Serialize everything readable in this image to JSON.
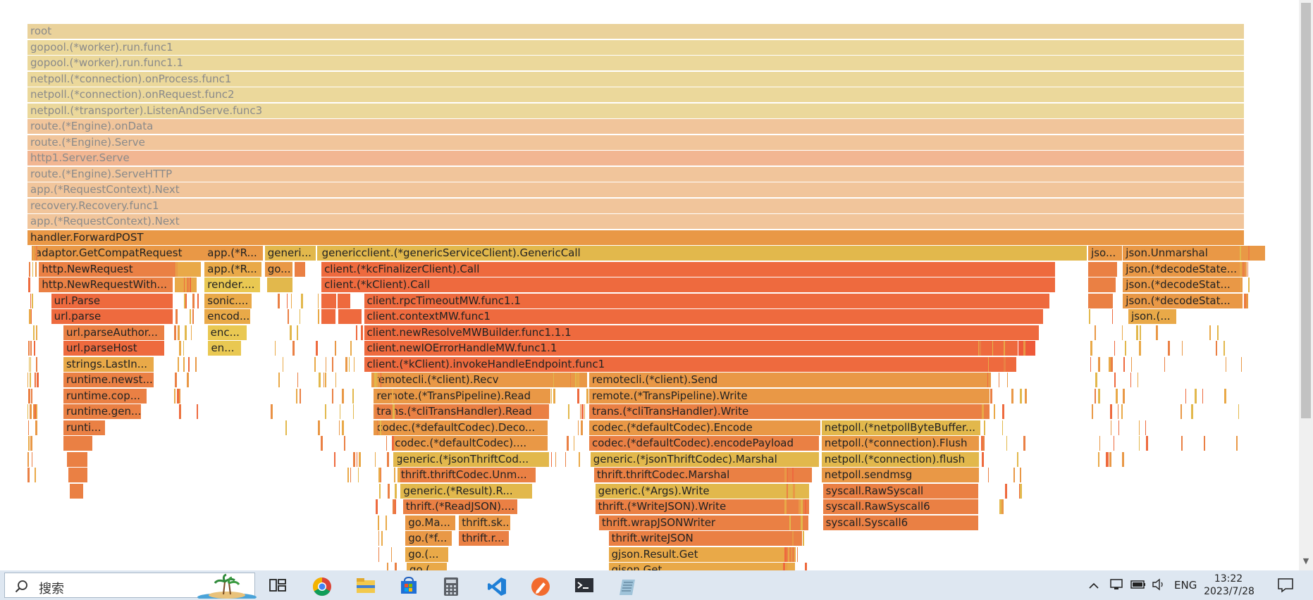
{
  "flamegraph": {
    "frames": [
      {
        "label": "root",
        "depth": 0,
        "start": 0,
        "width": 1,
        "color": "#ead29b",
        "faded": true
      },
      {
        "label": "gopool.(*worker).run.func1",
        "depth": 1,
        "start": 0,
        "width": 1,
        "color": "#ebd89b",
        "faded": true
      },
      {
        "label": "gopool.(*worker).run.func1.1",
        "depth": 2,
        "start": 0,
        "width": 1,
        "color": "#ebd89b",
        "faded": true
      },
      {
        "label": "netpoll.(*connection).onProcess.func1",
        "depth": 3,
        "start": 0,
        "width": 1,
        "color": "#ebd89b",
        "faded": true
      },
      {
        "label": "netpoll.(*connection).onRequest.func2",
        "depth": 4,
        "start": 0,
        "width": 1,
        "color": "#ebd89b",
        "faded": true
      },
      {
        "label": "netpoll.(*transporter).ListenAndServe.func3",
        "depth": 5,
        "start": 0,
        "width": 1,
        "color": "#ebd89b",
        "faded": true
      },
      {
        "label": "route.(*Engine).onData",
        "depth": 6,
        "start": 0,
        "width": 1,
        "color": "#f1c59b",
        "faded": true
      },
      {
        "label": "route.(*Engine).Serve",
        "depth": 7,
        "start": 0,
        "width": 1,
        "color": "#f1c59b",
        "faded": true
      },
      {
        "label": "http1.Server.Serve",
        "depth": 8,
        "start": 0,
        "width": 1,
        "color": "#f2b692",
        "faded": true
      },
      {
        "label": "route.(*Engine).ServeHTTP",
        "depth": 9,
        "start": 0,
        "width": 1,
        "color": "#f1c59b",
        "faded": true
      },
      {
        "label": "app.(*RequestContext).Next",
        "depth": 10,
        "start": 0,
        "width": 1,
        "color": "#f1c59b",
        "faded": true
      },
      {
        "label": "recovery.Recovery.func1",
        "depth": 11,
        "start": 0,
        "width": 1,
        "color": "#f1c59b",
        "faded": true
      },
      {
        "label": "app.(*RequestContext).Next",
        "depth": 12,
        "start": 0,
        "width": 1,
        "color": "#f1c59b",
        "faded": true
      },
      {
        "label": "handler.ForwardPOST",
        "depth": 13,
        "start": 0,
        "width": 1,
        "color": "#e99846",
        "faded": false
      },
      {
        "label": "adaptor.GetCompatRequest",
        "depth": 14,
        "start": 0.004,
        "width": 0.145,
        "color": "#e99846"
      },
      {
        "label": "app.(*R...",
        "depth": 14,
        "start": 0.1455,
        "width": 0.0485,
        "color": "#e99846"
      },
      {
        "label": "generi...",
        "depth": 14,
        "start": 0.195,
        "width": 0.0425,
        "color": "#e2b84c"
      },
      {
        "label": "",
        "depth": 14,
        "start": 0.238,
        "width": 0.0085,
        "color": "#e2b84c"
      },
      {
        "label": "genericclient.(*genericServiceClient).GenericCall",
        "depth": 14,
        "start": 0.2395,
        "width": 0.6315,
        "color": "#e2b84c"
      },
      {
        "label": "jso...",
        "depth": 14,
        "start": 0.8715,
        "width": 0.0285,
        "color": "#e99846"
      },
      {
        "label": "json.Unmarshal",
        "depth": 14,
        "start": 0.9,
        "width": 0.1176,
        "color": "#e99846"
      },
      {
        "label": "http.NewRequest",
        "depth": 15,
        "start": 0.0095,
        "width": 0.1135,
        "color": "#ea8044"
      },
      {
        "label": "",
        "depth": 15,
        "start": 0.1235,
        "width": 0.0195,
        "color": "#e9a948"
      },
      {
        "label": "app.(*R...",
        "depth": 15,
        "start": 0.1455,
        "width": 0.0475,
        "color": "#e9a948"
      },
      {
        "label": "go...",
        "depth": 15,
        "start": 0.195,
        "width": 0.0235,
        "color": "#e99846"
      },
      {
        "label": "",
        "depth": 15,
        "start": 0.2195,
        "width": 0.009,
        "color": "#ea8044"
      },
      {
        "label": "client.(*kcFinalizerClient).Call",
        "depth": 15,
        "start": 0.2415,
        "width": 0.6035,
        "color": "#ee6a3e"
      },
      {
        "label": "",
        "depth": 15,
        "start": 0.8715,
        "width": 0.024,
        "color": "#ea8044"
      },
      {
        "label": "json.(*decodeState...",
        "depth": 15,
        "start": 0.9,
        "width": 0.099,
        "color": "#e99846"
      },
      {
        "label": "http.NewRequestWith...",
        "depth": 16,
        "start": 0.0095,
        "width": 0.1105,
        "color": "#ea8044"
      },
      {
        "label": "",
        "depth": 16,
        "start": 0.121,
        "width": 0.0185,
        "color": "#e9a948"
      },
      {
        "label": "render....",
        "depth": 16,
        "start": 0.1455,
        "width": 0.046,
        "color": "#e9c852"
      },
      {
        "label": "",
        "depth": 16,
        "start": 0.197,
        "width": 0.0215,
        "color": "#e2b84c"
      },
      {
        "label": "client.(*kClient).Call",
        "depth": 16,
        "start": 0.2415,
        "width": 0.6035,
        "color": "#ee6a3e"
      },
      {
        "label": "",
        "depth": 16,
        "start": 0.8715,
        "width": 0.023,
        "color": "#ea8044"
      },
      {
        "label": "json.(*decodeStat...",
        "depth": 16,
        "start": 0.9,
        "width": 0.099,
        "color": "#e99846"
      },
      {
        "label": "url.Parse",
        "depth": 17,
        "start": 0.0195,
        "width": 0.1005,
        "color": "#ee6a3e"
      },
      {
        "label": "sonic....",
        "depth": 17,
        "start": 0.1455,
        "width": 0.0395,
        "color": "#e9a948"
      },
      {
        "label": "",
        "depth": 17,
        "start": 0.2415,
        "width": 0.0125,
        "color": "#ee6a3e"
      },
      {
        "label": "",
        "depth": 17,
        "start": 0.255,
        "width": 0.0105,
        "color": "#ee6a3e"
      },
      {
        "label": "client.rpcTimeoutMW.func1.1",
        "depth": 17,
        "start": 0.2765,
        "width": 0.5635,
        "color": "#ee6a3e"
      },
      {
        "label": "",
        "depth": 17,
        "start": 0.8715,
        "width": 0.021,
        "color": "#ea8044"
      },
      {
        "label": "json.(*decodeStat...",
        "depth": 17,
        "start": 0.9,
        "width": 0.099,
        "color": "#e99846"
      },
      {
        "label": "url.parse",
        "depth": 18,
        "start": 0.0195,
        "width": 0.1005,
        "color": "#ee6a3e"
      },
      {
        "label": "encod...",
        "depth": 18,
        "start": 0.1455,
        "width": 0.038,
        "color": "#e9a948"
      },
      {
        "label": "",
        "depth": 18,
        "start": 0.2415,
        "width": 0.012,
        "color": "#ee6a3e"
      },
      {
        "label": "",
        "depth": 18,
        "start": 0.2555,
        "width": 0.0195,
        "color": "#ee6a3e"
      },
      {
        "label": "client.contextMW.func1",
        "depth": 18,
        "start": 0.2765,
        "width": 0.5585,
        "color": "#ee6a3e"
      },
      {
        "label": "json.(...",
        "depth": 18,
        "start": 0.9045,
        "width": 0.04,
        "color": "#e9a948"
      },
      {
        "label": "url.parseAuthor...",
        "depth": 19,
        "start": 0.0295,
        "width": 0.0835,
        "color": "#ea8044"
      },
      {
        "label": "enc...",
        "depth": 19,
        "start": 0.148,
        "width": 0.0325,
        "color": "#e9c852"
      },
      {
        "label": "client.newResolveMWBuilder.func1.1.1",
        "depth": 19,
        "start": 0.2765,
        "width": 0.555,
        "color": "#ee6a3e"
      },
      {
        "label": "url.parseHost",
        "depth": 20,
        "start": 0.0295,
        "width": 0.0835,
        "color": "#ee6a3e"
      },
      {
        "label": "en...",
        "depth": 20,
        "start": 0.1485,
        "width": 0.0275,
        "color": "#e9c852"
      },
      {
        "label": "client.newIOErrorHandleMW.func1.1",
        "depth": 20,
        "start": 0.2765,
        "width": 0.5375,
        "color": "#ee6a3e"
      },
      {
        "label": "",
        "depth": 20,
        "start": 0.814,
        "width": 0.0145,
        "color": "#ee5a3a"
      },
      {
        "label": "strings.LastIn...",
        "depth": 21,
        "start": 0.0295,
        "width": 0.0745,
        "color": "#e9a948"
      },
      {
        "label": "client.(*kClient).invokeHandleEndpoint.func1",
        "depth": 21,
        "start": 0.2765,
        "width": 0.5365,
        "color": "#ee6a3e"
      },
      {
        "label": "runtime.newst...",
        "depth": 22,
        "start": 0.0295,
        "width": 0.0745,
        "color": "#ea8044"
      },
      {
        "label": "remotecli.(*client).Recv",
        "depth": 22,
        "start": 0.2825,
        "width": 0.178,
        "color": "#e99846"
      },
      {
        "label": "remotecli.(*client).Send",
        "depth": 22,
        "start": 0.4615,
        "width": 0.3305,
        "color": "#e99846"
      },
      {
        "label": "runtime.cop...",
        "depth": 23,
        "start": 0.0295,
        "width": 0.069,
        "color": "#ea8044"
      },
      {
        "label": "remote.(*TransPipeline).Read",
        "depth": 23,
        "start": 0.2845,
        "width": 0.146,
        "color": "#e99846"
      },
      {
        "label": "remote.(*TransPipeline).Write",
        "depth": 23,
        "start": 0.4615,
        "width": 0.3295,
        "color": "#e99846"
      },
      {
        "label": "runtime.gen...",
        "depth": 24,
        "start": 0.0295,
        "width": 0.0645,
        "color": "#ea8044"
      },
      {
        "label": "trans.(*cliTransHandler).Read",
        "depth": 24,
        "start": 0.2845,
        "width": 0.1445,
        "color": "#ea8044"
      },
      {
        "label": "trans.(*cliTransHandler).Write",
        "depth": 24,
        "start": 0.4615,
        "width": 0.3295,
        "color": "#ea8044"
      },
      {
        "label": "runti...",
        "depth": 25,
        "start": 0.0295,
        "width": 0.0345,
        "color": "#ea8044"
      },
      {
        "label": "codec.(*defaultCodec).Deco...",
        "depth": 25,
        "start": 0.2845,
        "width": 0.1435,
        "color": "#e99846"
      },
      {
        "label": "codec.(*defaultCodec).Encode",
        "depth": 25,
        "start": 0.4615,
        "width": 0.1905,
        "color": "#e99846"
      },
      {
        "label": "netpoll.(*netpollByteBuffer...",
        "depth": 25,
        "start": 0.6525,
        "width": 0.131,
        "color": "#e2b84c"
      },
      {
        "label": "",
        "depth": 26,
        "start": 0.0295,
        "width": 0.0245,
        "color": "#ea8044"
      },
      {
        "label": "codec.(*defaultCodec)....",
        "depth": 26,
        "start": 0.2995,
        "width": 0.1285,
        "color": "#e99846"
      },
      {
        "label": "codec.(*defaultCodec).encodePayload",
        "depth": 26,
        "start": 0.4615,
        "width": 0.1895,
        "color": "#ea8044"
      },
      {
        "label": "netpoll.(*connection).Flush",
        "depth": 26,
        "start": 0.6525,
        "width": 0.1295,
        "color": "#e99846"
      },
      {
        "label": "",
        "depth": 27,
        "start": 0.0325,
        "width": 0.0175,
        "color": "#ea8044"
      },
      {
        "label": "generic.(*jsonThriftCod...",
        "depth": 27,
        "start": 0.3005,
        "width": 0.1285,
        "color": "#e2b84c"
      },
      {
        "label": "generic.(*jsonThriftCodec).Marshal",
        "depth": 27,
        "start": 0.4625,
        "width": 0.1885,
        "color": "#e2b84c"
      },
      {
        "label": "netpoll.(*connection).flush",
        "depth": 27,
        "start": 0.6525,
        "width": 0.1295,
        "color": "#e2b84c"
      },
      {
        "label": "",
        "depth": 28,
        "start": 0.0335,
        "width": 0.0165,
        "color": "#ea8044"
      },
      {
        "label": "thrift.thriftCodec.Unm...",
        "depth": 28,
        "start": 0.3045,
        "width": 0.1135,
        "color": "#ea8044"
      },
      {
        "label": "thrift.thriftCodec.Marshal",
        "depth": 28,
        "start": 0.4655,
        "width": 0.1795,
        "color": "#ea8044"
      },
      {
        "label": "netpoll.sendmsg",
        "depth": 28,
        "start": 0.6525,
        "width": 0.1295,
        "color": "#e99846"
      },
      {
        "label": "",
        "depth": 29,
        "start": 0.0345,
        "width": 0.012,
        "color": "#ea8044"
      },
      {
        "label": "generic.(*Result).R...",
        "depth": 29,
        "start": 0.3065,
        "width": 0.1085,
        "color": "#e2b84c"
      },
      {
        "label": "generic.(*Args).Write",
        "depth": 29,
        "start": 0.4665,
        "width": 0.1765,
        "color": "#e2b84c"
      },
      {
        "label": "syscall.RawSyscall",
        "depth": 29,
        "start": 0.6535,
        "width": 0.128,
        "color": "#ea8044"
      },
      {
        "label": "thrift.(*ReadJSON)....",
        "depth": 30,
        "start": 0.3085,
        "width": 0.0945,
        "color": "#ea8044"
      },
      {
        "label": "thrift.(*WriteJSON).Write",
        "depth": 30,
        "start": 0.4665,
        "width": 0.1765,
        "color": "#ea8044"
      },
      {
        "label": "syscall.RawSyscall6",
        "depth": 30,
        "start": 0.6535,
        "width": 0.128,
        "color": "#ea8044"
      },
      {
        "label": "go.Ma...",
        "depth": 31,
        "start": 0.3105,
        "width": 0.0415,
        "color": "#e99846"
      },
      {
        "label": "thrift.sk...",
        "depth": 31,
        "start": 0.3545,
        "width": 0.0425,
        "color": "#e99846"
      },
      {
        "label": "thrift.wrapJSONWriter",
        "depth": 31,
        "start": 0.4695,
        "width": 0.1725,
        "color": "#ea8044"
      },
      {
        "label": "syscall.Syscall6",
        "depth": 31,
        "start": 0.6535,
        "width": 0.128,
        "color": "#ea8044"
      },
      {
        "label": "go.(*f...",
        "depth": 32,
        "start": 0.3105,
        "width": 0.0385,
        "color": "#e99846"
      },
      {
        "label": "thrift.r...",
        "depth": 32,
        "start": 0.3545,
        "width": 0.0415,
        "color": "#ea8044"
      },
      {
        "label": "thrift.writeJSON",
        "depth": 32,
        "start": 0.4775,
        "width": 0.1595,
        "color": "#ea8044"
      },
      {
        "label": "go.(...",
        "depth": 33,
        "start": 0.3105,
        "width": 0.0355,
        "color": "#e9a948"
      },
      {
        "label": "gjson.Result.Get",
        "depth": 33,
        "start": 0.4775,
        "width": 0.1545,
        "color": "#e9a948"
      },
      {
        "label": "go.(...",
        "depth": 34,
        "start": 0.3115,
        "width": 0.0335,
        "color": "#e9a948"
      },
      {
        "label": "gjson.Get",
        "depth": 34,
        "start": 0.4775,
        "width": 0.1535,
        "color": "#e9a948"
      }
    ]
  },
  "taskbar": {
    "search_placeholder": "搜索",
    "apps": [
      "task-view-icon",
      "chrome-icon",
      "file-explorer-icon",
      "store-icon",
      "calculator-icon",
      "vscode-icon",
      "pen-app-icon",
      "terminal-icon",
      "notepad-icon"
    ],
    "language": "ENG",
    "time": "13:22",
    "date": "2023/7/28"
  }
}
